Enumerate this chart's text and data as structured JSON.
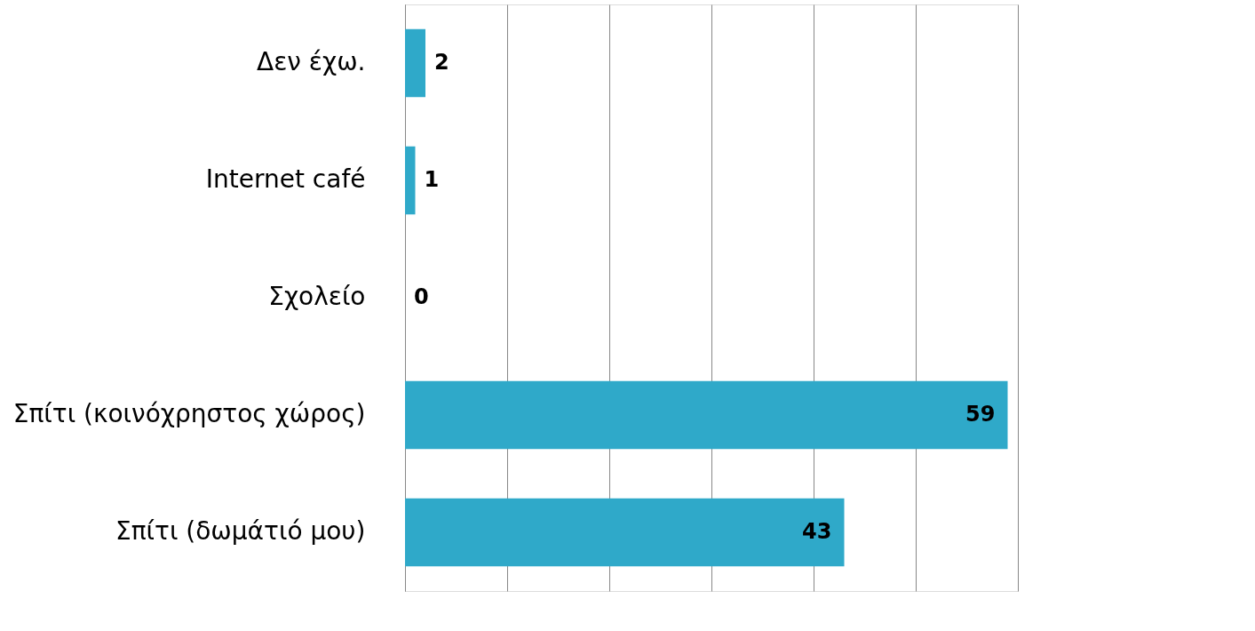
{
  "chart_data": {
    "type": "bar",
    "orientation": "horizontal",
    "categories": [
      "Δεν έχω.",
      "Internet café",
      "Σχολείο",
      "Σπίτι (κοινόχρηστος  χώρος)",
      "Σπίτι (δωμάτιό  μου)"
    ],
    "values": [
      2,
      1,
      0,
      59,
      43
    ],
    "color": "#2fa9c9",
    "data_labels": true,
    "xlim": [
      0,
      60
    ],
    "xticks": [
      {
        "value": 0,
        "label": null
      },
      {
        "value": 10,
        "label": null
      },
      {
        "value": 20,
        "label": null
      },
      {
        "value": 30,
        "label": null
      },
      {
        "value": 40,
        "label": null
      },
      {
        "value": 50,
        "label": null
      },
      {
        "value": 60,
        "label": null
      }
    ],
    "grid": "x",
    "tick_labels": "y"
  }
}
